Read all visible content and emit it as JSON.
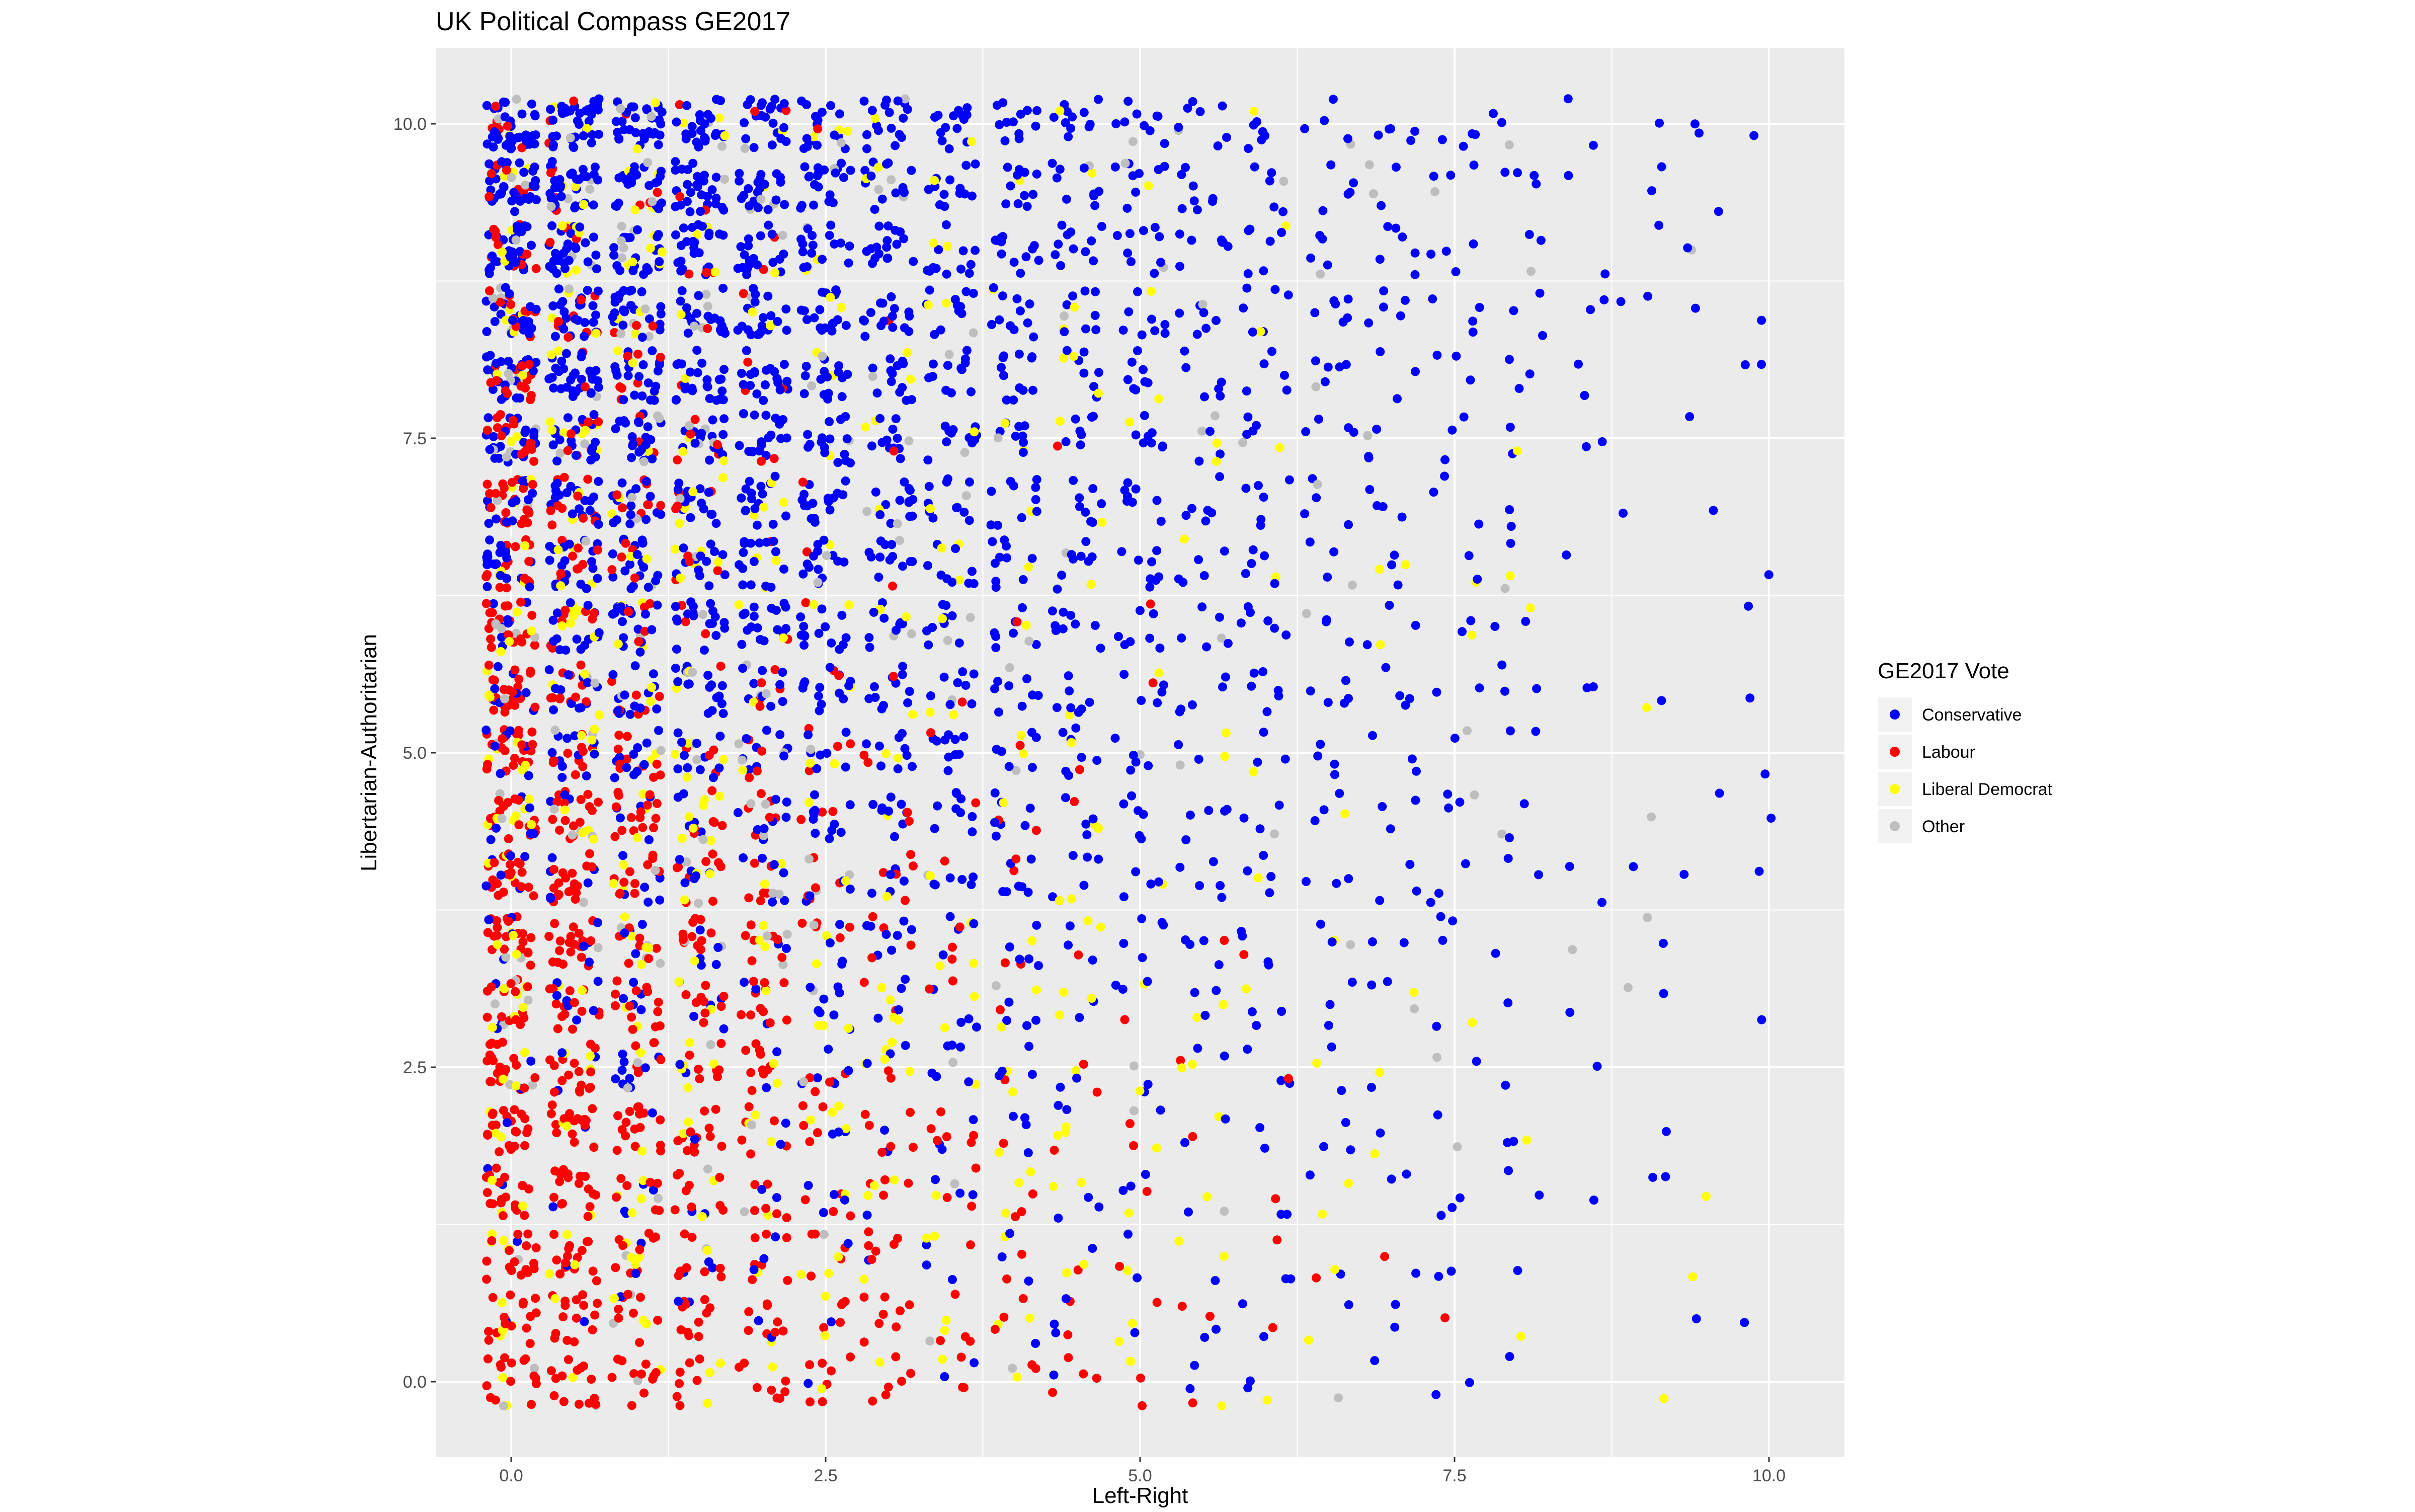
{
  "chart_data": {
    "type": "scatter",
    "title": "UK Political Compass GE2017",
    "xlabel": "Left-Right",
    "ylabel": "Libertarian-Authoritarian",
    "xlim": [
      -0.6,
      10.6
    ],
    "ylim": [
      -0.6,
      10.6
    ],
    "x_ticks": [
      0,
      2.5,
      5,
      7.5,
      10
    ],
    "x_tick_labels": [
      "0.0",
      "2.5",
      "5.0",
      "7.5",
      "10.0"
    ],
    "y_ticks": [
      0,
      2.5,
      5,
      7.5,
      10
    ],
    "y_tick_labels": [
      "0.0",
      "2.5",
      "5.0",
      "7.5",
      "10.0"
    ],
    "grid": true,
    "panel_background": "#ebebeb",
    "grid_color": "#ffffff",
    "jitter": 0.2,
    "legend": {
      "title": "GE2017 Vote",
      "position": "right"
    },
    "series": [
      {
        "name": "Conservative",
        "color": "#0000ff"
      },
      {
        "name": "Labour",
        "color": "#ff0000"
      },
      {
        "name": "Liberal Democrat",
        "color": "#ffff00"
      },
      {
        "name": "Other",
        "color": "#bebebe"
      }
    ],
    "point_grid_step": 0.5,
    "approximate_density": {
      "description": "Points lie on a 0.5-step grid (jittered ±0.2). Density falls with x; composition shifts from Labour/LD at low x to Conservative at high x and high y."
    }
  }
}
